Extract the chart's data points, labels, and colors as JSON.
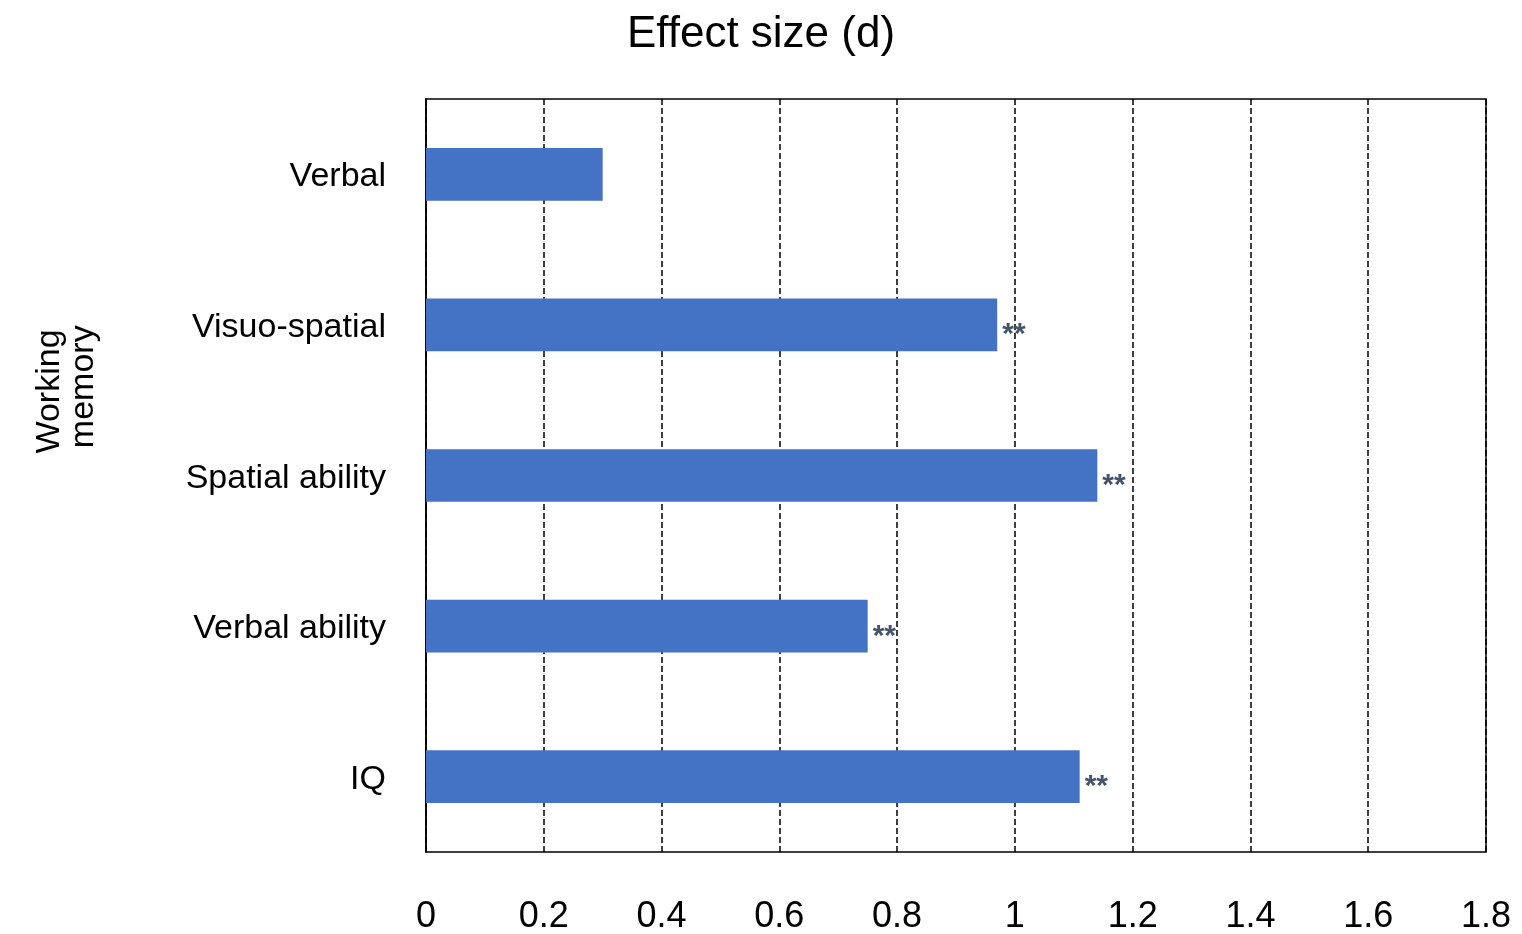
{
  "chart_data": {
    "type": "bar",
    "orientation": "horizontal",
    "title": "Effect size (d)",
    "categories": [
      "Verbal",
      "Visuo-spatial",
      "Spatial ability",
      "Verbal ability",
      "IQ"
    ],
    "values": [
      0.3,
      0.97,
      1.14,
      0.75,
      1.11
    ],
    "value_labels": [
      null,
      "**",
      "**",
      "**",
      "**"
    ],
    "color": "#4472c4",
    "xlim": [
      0,
      1.8
    ],
    "xticks": [
      0,
      0.2,
      0.4,
      0.6,
      0.8,
      1,
      1.2,
      1.4,
      1.6,
      1.8
    ],
    "grid": "x",
    "annotations": [
      "Working memory"
    ]
  }
}
